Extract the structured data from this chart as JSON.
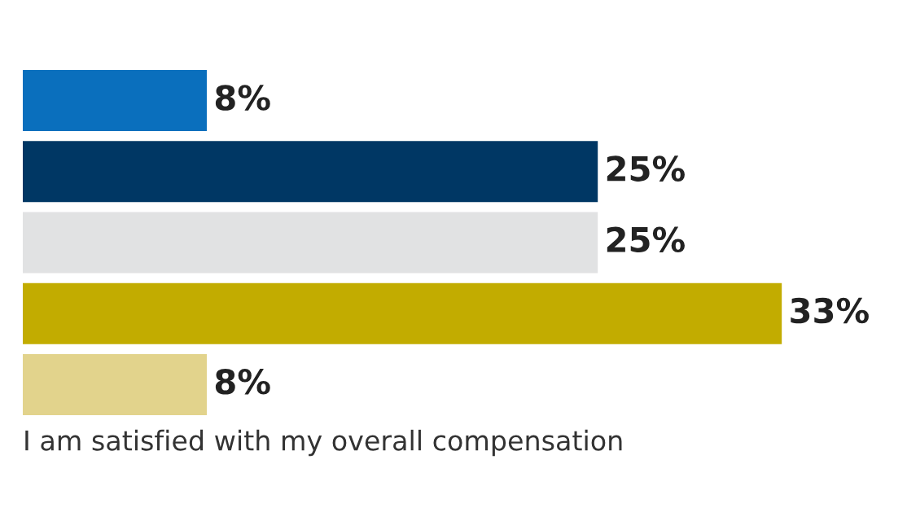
{
  "chart_data": {
    "type": "bar",
    "orientation": "horizontal",
    "categories": [
      null,
      null,
      null,
      null,
      null
    ],
    "values": [
      8,
      25,
      25,
      33,
      8
    ],
    "colors": [
      "#0a6fbd",
      "#003764",
      "#e1e2e3",
      "#c2ac00",
      "#e2d38c"
    ],
    "value_labels": [
      "8%",
      "25%",
      "25%",
      "33%",
      "8%"
    ],
    "annotations": [
      "I am satisfied with my overall compensation"
    ],
    "grid": false,
    "legend": false
  }
}
